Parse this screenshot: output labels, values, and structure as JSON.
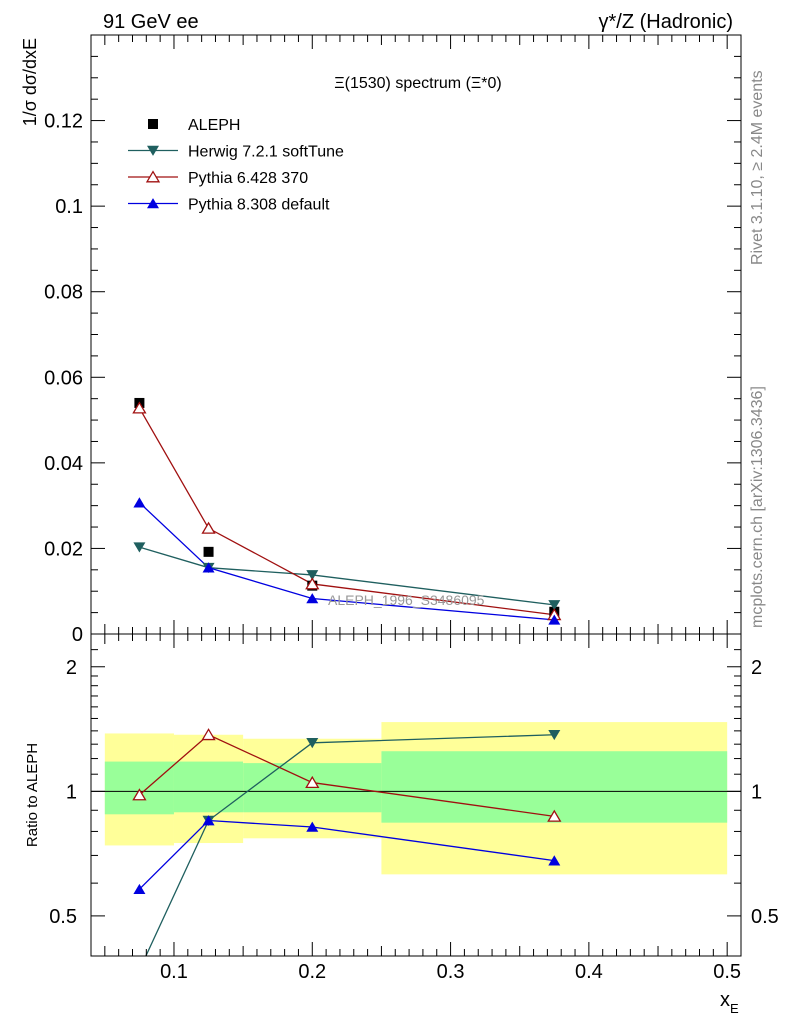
{
  "header": {
    "left": "91 GeV ee",
    "right": "γ*/Z (Hadronic)"
  },
  "side_text": {
    "rivet": "Rivet 3.1.10, ≥ 2.4M events",
    "mcplots": "mcplots.cern.ch [arXiv:1306.3436]"
  },
  "chart_data": [
    {
      "type": "line",
      "title": "Ξ(1530) spectrum (Ξ*0)",
      "ylabel": "1/σ dσ/dxE",
      "xlim": [
        0.04,
        0.51
      ],
      "ylim": [
        0,
        0.14
      ],
      "yticks": [
        0,
        0.02,
        0.04,
        0.06,
        0.08,
        0.1,
        0.12
      ],
      "ytick_labels": [
        "0",
        "0.02",
        "0.04",
        "0.06",
        "0.08",
        "0.1",
        "0.12"
      ],
      "legend_position": "top-left",
      "watermark": "ALEPH_1996_S3486095",
      "x": [
        0.075,
        0.125,
        0.2,
        0.375
      ],
      "series": [
        {
          "name": "ALEPH",
          "marker": "square",
          "color": "#000000",
          "line": false,
          "values": [
            0.054,
            0.0192,
            0.0113,
            0.0052
          ]
        },
        {
          "name": "Herwig 7.2.1 softTune",
          "marker": "triangle-down",
          "color": "#1f5f5f",
          "line": true,
          "values": [
            0.0203,
            0.0155,
            0.0138,
            0.0068
          ]
        },
        {
          "name": "Pythia 6.428 370",
          "marker": "triangle-up-open",
          "color": "#a01010",
          "line": true,
          "values": [
            0.0528,
            0.0247,
            0.0117,
            0.0045
          ]
        },
        {
          "name": "Pythia 8.308 default",
          "marker": "triangle-up",
          "color": "#0000e0",
          "line": true,
          "values": [
            0.0307,
            0.0155,
            0.0083,
            0.0033
          ]
        }
      ]
    },
    {
      "type": "line",
      "ylabel": "Ratio to ALEPH",
      "xlabel": "xE",
      "xlim": [
        0.04,
        0.51
      ],
      "ylim": [
        0.4,
        2.4
      ],
      "log_y": true,
      "yticks": [
        0.5,
        1,
        2
      ],
      "ytick_labels": [
        "0.5",
        "1",
        "2"
      ],
      "xticks": [
        0.1,
        0.2,
        0.3,
        0.4,
        0.5
      ],
      "xtick_labels": [
        "0.1",
        "0.2",
        "0.3",
        "0.4",
        "0.5"
      ],
      "bands": [
        {
          "x0": 0.05,
          "x1": 0.1,
          "inner": [
            0.88,
            1.18
          ],
          "outer": [
            0.74,
            1.38
          ]
        },
        {
          "x0": 0.1,
          "x1": 0.15,
          "inner": [
            0.89,
            1.18
          ],
          "outer": [
            0.75,
            1.37
          ]
        },
        {
          "x0": 0.15,
          "x1": 0.25,
          "inner": [
            0.89,
            1.17
          ],
          "outer": [
            0.77,
            1.34
          ]
        },
        {
          "x0": 0.25,
          "x1": 0.5,
          "inner": [
            0.84,
            1.25
          ],
          "outer": [
            0.63,
            1.47
          ]
        }
      ],
      "band_colors": {
        "inner": "#99ff99",
        "outer": "#ffff99"
      },
      "x": [
        0.075,
        0.125,
        0.2,
        0.375
      ],
      "series": [
        {
          "name": "Herwig 7.2.1 softTune",
          "marker": "triangle-down",
          "color": "#1f5f5f",
          "values": [
            0.37,
            0.85,
            1.31,
            1.37
          ]
        },
        {
          "name": "Pythia 6.428 370",
          "marker": "triangle-up-open",
          "color": "#a01010",
          "values": [
            0.98,
            1.37,
            1.05,
            0.87
          ]
        },
        {
          "name": "Pythia 8.308 default",
          "marker": "triangle-up",
          "color": "#0000e0",
          "values": [
            0.58,
            0.85,
            0.82,
            0.68
          ]
        }
      ]
    }
  ]
}
